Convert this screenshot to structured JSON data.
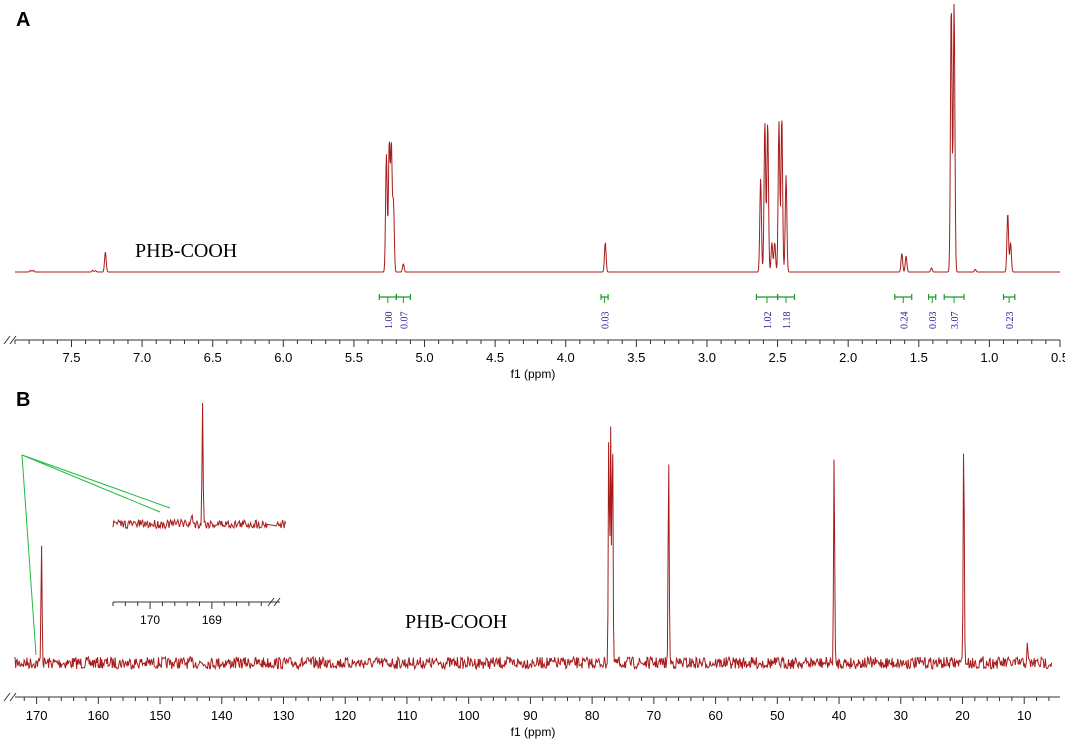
{
  "figure": {
    "panel_a_label": "A",
    "panel_b_label": "B",
    "spectrum_color": "#a81c1c",
    "integral_color": "#1a9a2a",
    "integral_text_color": "#1a1a9a",
    "inset_line_color": "#22bb44"
  },
  "chart_data": [
    {
      "type": "line",
      "panel": "A",
      "xlabel": "f1 (ppm)",
      "x_reversed": true,
      "xlim": [
        7.9,
        0.5
      ],
      "x_ticks": [
        "7.5",
        "7.0",
        "6.5",
        "6.0",
        "5.5",
        "5.0",
        "4.5",
        "4.0",
        "3.5",
        "3.0",
        "2.5",
        "2.0",
        "1.5",
        "1.0",
        "0.5"
      ],
      "annotation": "PHB-COOH",
      "peaks": [
        {
          "ppm": 7.79,
          "h": 0.006
        },
        {
          "ppm": 7.77,
          "h": 0.006
        },
        {
          "ppm": 7.35,
          "h": 0.006
        },
        {
          "ppm": 7.33,
          "h": 0.005
        },
        {
          "ppm": 7.26,
          "h": 0.075
        },
        {
          "ppm": 5.27,
          "h": 0.44
        },
        {
          "ppm": 5.25,
          "h": 0.48
        },
        {
          "ppm": 5.235,
          "h": 0.47
        },
        {
          "ppm": 5.22,
          "h": 0.26
        },
        {
          "ppm": 5.15,
          "h": 0.03
        },
        {
          "ppm": 3.72,
          "h": 0.11
        },
        {
          "ppm": 2.62,
          "h": 0.35
        },
        {
          "ppm": 2.59,
          "h": 0.56
        },
        {
          "ppm": 2.57,
          "h": 0.56
        },
        {
          "ppm": 2.54,
          "h": 0.11
        },
        {
          "ppm": 2.52,
          "h": 0.11
        },
        {
          "ppm": 2.49,
          "h": 0.56
        },
        {
          "ppm": 2.47,
          "h": 0.58
        },
        {
          "ppm": 2.44,
          "h": 0.36
        },
        {
          "ppm": 1.62,
          "h": 0.07
        },
        {
          "ppm": 1.59,
          "h": 0.06
        },
        {
          "ppm": 1.41,
          "h": 0.015
        },
        {
          "ppm": 1.27,
          "h": 1.0
        },
        {
          "ppm": 1.25,
          "h": 1.0
        },
        {
          "ppm": 1.1,
          "h": 0.01
        },
        {
          "ppm": 0.87,
          "h": 0.22
        },
        {
          "ppm": 0.85,
          "h": 0.11
        }
      ],
      "integrals": [
        {
          "from": 5.32,
          "to": 5.2,
          "label": "1.00"
        },
        {
          "from": 5.2,
          "to": 5.1,
          "label": "0.07"
        },
        {
          "from": 3.75,
          "to": 3.7,
          "label": "0.03"
        },
        {
          "from": 2.65,
          "to": 2.5,
          "label": "1.02"
        },
        {
          "from": 2.5,
          "to": 2.38,
          "label": "1.18"
        },
        {
          "from": 1.67,
          "to": 1.55,
          "label": "0.24"
        },
        {
          "from": 1.43,
          "to": 1.38,
          "label": "0.03"
        },
        {
          "from": 1.32,
          "to": 1.18,
          "label": "3.07"
        },
        {
          "from": 0.9,
          "to": 0.82,
          "label": "0.23"
        }
      ]
    },
    {
      "type": "line",
      "panel": "B",
      "xlabel": "f1 (ppm)",
      "x_reversed": true,
      "xlim": [
        173.5,
        5.5
      ],
      "x_ticks": [
        "170",
        "160",
        "150",
        "140",
        "130",
        "120",
        "110",
        "100",
        "90",
        "80",
        "70",
        "60",
        "50",
        "40",
        "30",
        "20",
        "10"
      ],
      "annotation": "PHB-COOH",
      "peaks": [
        {
          "ppm": 169.2,
          "h": 0.52
        },
        {
          "ppm": 77.3,
          "h": 1.0
        },
        {
          "ppm": 77.0,
          "h": 1.0
        },
        {
          "ppm": 76.7,
          "h": 1.0
        },
        {
          "ppm": 67.6,
          "h": 0.88
        },
        {
          "ppm": 40.8,
          "h": 0.87
        },
        {
          "ppm": 19.8,
          "h": 1.0
        },
        {
          "ppm": 9.5,
          "h": 0.07
        }
      ],
      "inset": {
        "x_ticks": [
          "170",
          "169"
        ],
        "peaks": [
          {
            "ppm": 169.15,
            "h": 1.0
          },
          {
            "ppm": 169.32,
            "h": 0.1
          },
          {
            "ppm": 169.5,
            "h": 0.06
          }
        ]
      }
    }
  ]
}
